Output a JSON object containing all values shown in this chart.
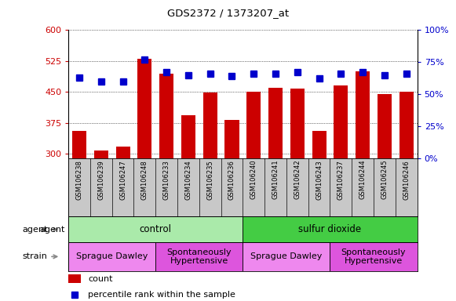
{
  "title": "GDS2372 / 1373207_at",
  "samples": [
    "GSM106238",
    "GSM106239",
    "GSM106247",
    "GSM106248",
    "GSM106233",
    "GSM106234",
    "GSM106235",
    "GSM106236",
    "GSM106240",
    "GSM106241",
    "GSM106242",
    "GSM106243",
    "GSM106237",
    "GSM106244",
    "GSM106245",
    "GSM106246"
  ],
  "count": [
    355,
    308,
    318,
    530,
    495,
    393,
    448,
    383,
    450,
    460,
    458,
    355,
    465,
    500,
    445,
    450
  ],
  "percentile": [
    63,
    60,
    60,
    77,
    67,
    65,
    66,
    64,
    66,
    66,
    67,
    62,
    66,
    67,
    65,
    66
  ],
  "ylim_left": [
    290,
    600
  ],
  "ylim_right": [
    0,
    100
  ],
  "yticks_left": [
    300,
    375,
    450,
    525,
    600
  ],
  "yticks_right": [
    0,
    25,
    50,
    75,
    100
  ],
  "bar_color": "#cc0000",
  "dot_color": "#0000cc",
  "agent_groups": [
    {
      "label": "control",
      "start": 0,
      "end": 8,
      "color": "#aaeaaa"
    },
    {
      "label": "sulfur dioxide",
      "start": 8,
      "end": 16,
      "color": "#44cc44"
    }
  ],
  "strain_groups": [
    {
      "label": "Sprague Dawley",
      "start": 0,
      "end": 4,
      "color": "#ee88ee"
    },
    {
      "label": "Spontaneously\nHypertensive",
      "start": 4,
      "end": 8,
      "color": "#dd55dd"
    },
    {
      "label": "Sprague Dawley",
      "start": 8,
      "end": 12,
      "color": "#ee88ee"
    },
    {
      "label": "Spontaneously\nHypertensive",
      "start": 12,
      "end": 16,
      "color": "#dd55dd"
    }
  ],
  "tick_area_color": "#c8c8c8",
  "left_label_color": "#cc0000",
  "right_label_color": "#0000cc",
  "chart_bg": "#ffffff"
}
